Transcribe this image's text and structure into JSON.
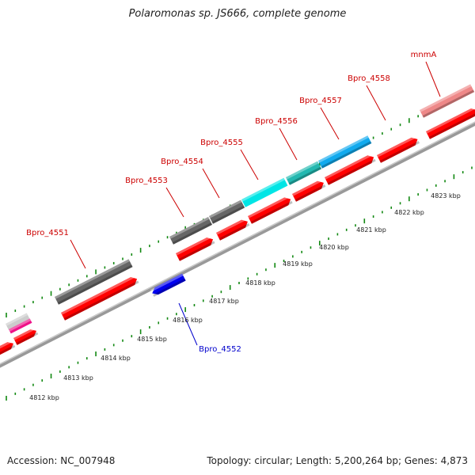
{
  "title": "Polaromonas sp. JS666, complete genome",
  "footer": {
    "accession": "Accession: NC_007948",
    "summary": "Topology: circular; Length: 5,200,264 bp; Genes: 4,873"
  },
  "colors": {
    "forward_label": "#cc0000",
    "reverse_label": "#0000cc",
    "backbone": "#999999",
    "tick": "#118811",
    "cds": "#ff0000",
    "gray_feature": "#666666",
    "cyan_feature": "#00e5e5",
    "teal_feature": "#22b8b0",
    "blue_feature": "#11aaee",
    "pink_feature": "#ee8888",
    "reverse_cds": "#0000ee"
  },
  "scale": {
    "unit": "kbp",
    "tick_labels": [
      "4812 kbp",
      "4813 kbp",
      "4814 kbp",
      "4815 kbp",
      "4816 kbp",
      "4817 kbp",
      "4818 kbp",
      "4819 kbp",
      "4820 kbp",
      "4821 kbp",
      "4822 kbp",
      "4823 kbp"
    ]
  },
  "genes": [
    {
      "name": "Bpro_4551",
      "strand": "forward"
    },
    {
      "name": "Bpro_4552",
      "strand": "reverse"
    },
    {
      "name": "Bpro_4553",
      "strand": "forward"
    },
    {
      "name": "Bpro_4554",
      "strand": "forward"
    },
    {
      "name": "Bpro_4555",
      "strand": "forward"
    },
    {
      "name": "Bpro_4556",
      "strand": "forward"
    },
    {
      "name": "Bpro_4557",
      "strand": "forward"
    },
    {
      "name": "Bpro_4558",
      "strand": "forward"
    },
    {
      "name": "mnmA",
      "strand": "forward"
    }
  ]
}
